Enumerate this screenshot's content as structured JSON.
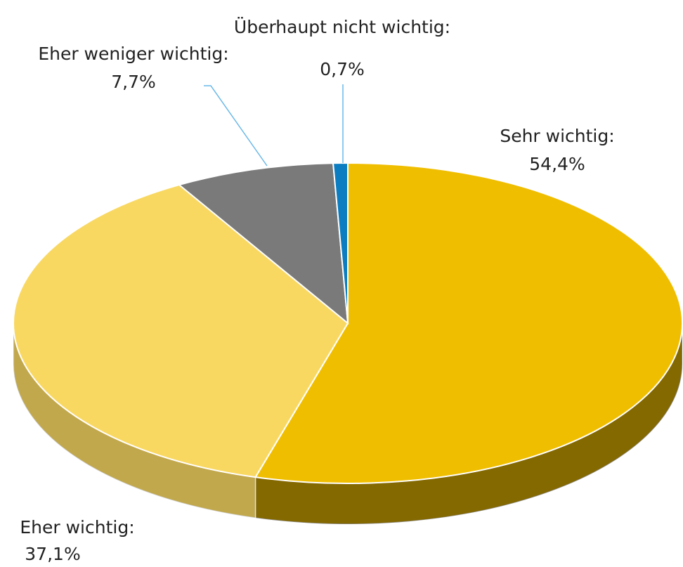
{
  "chart_data": {
    "type": "pie",
    "categories": [
      "Sehr wichtig:",
      "Eher wichtig:",
      "Eher weniger wichtig:",
      "Überhaupt nicht wichtig:"
    ],
    "values": [
      54.4,
      37.1,
      7.7,
      0.7
    ],
    "value_labels": [
      "54,4%",
      "37,1%",
      "7,7%",
      "0,7%"
    ],
    "colors": [
      "#f0be00",
      "#f9d862",
      "#7a7a7a",
      "#0b7dc0"
    ]
  }
}
